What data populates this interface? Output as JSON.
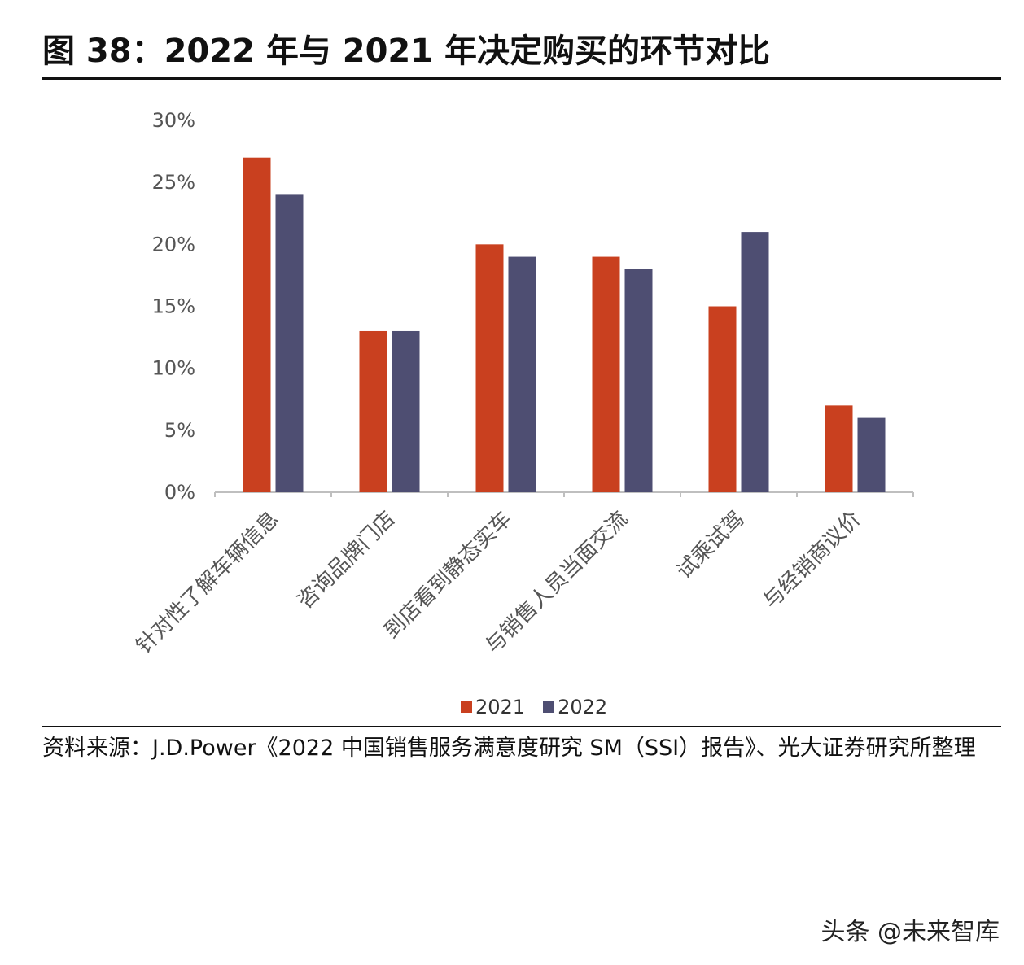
{
  "header": {
    "title": "图 38：2022 年与 2021 年决定购买的环节对比"
  },
  "chart_data": {
    "type": "bar",
    "categories": [
      "针对性了解车辆信息",
      "咨询品牌门店",
      "到店看到静态实车",
      "与销售人员当面交流",
      "试乘试驾",
      "与经销商议价"
    ],
    "series": [
      {
        "name": "2021",
        "values": [
          27,
          13,
          20,
          19,
          15,
          7
        ],
        "color": "#c9401f"
      },
      {
        "name": "2022",
        "values": [
          24,
          13,
          19,
          18,
          21,
          6
        ],
        "color": "#4e4e72"
      }
    ],
    "y_ticks": [
      "0%",
      "5%",
      "10%",
      "15%",
      "20%",
      "25%",
      "30%"
    ],
    "ylim": [
      0,
      30
    ],
    "legend_position": "bottom"
  },
  "footer": {
    "source": "资料来源：J.D.Power《2022 中国销售服务满意度研究 SM（SSI）报告》、光大证券研究所整理"
  },
  "watermark": {
    "text": "头条 @未来智库"
  }
}
